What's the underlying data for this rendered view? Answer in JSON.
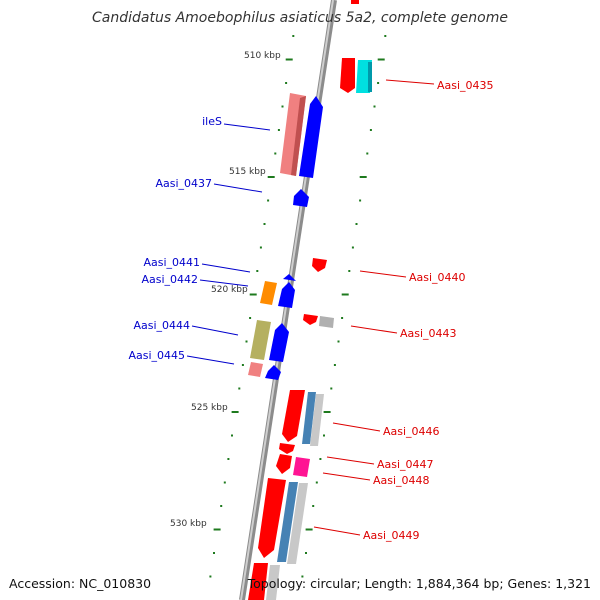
{
  "title": "Candidatus Amoebophilus asiaticus 5a2, complete genome",
  "footer": {
    "accession": "Accession: NC_010830",
    "topology": "Topology: circular; Length: 1,884,364 bp; Genes: 1,321"
  },
  "colors": {
    "backbone": "#8c8c8c",
    "tick": "#1e7a1e",
    "plus_label": "#0000cc",
    "minus_label": "#dd0000",
    "red": "#ff0000",
    "blue": "#0000ff",
    "cyan": "#00e0e0",
    "pink": "#f08080",
    "orange": "#ff8c00",
    "olive": "#b5b060",
    "magenta": "#ff1493",
    "gray": "#b0b0b0",
    "steelblue": "#4682b4"
  },
  "kbp_labels": [
    "510 kbp",
    "515 kbp",
    "520 kbp",
    "525 kbp",
    "530 kbp"
  ],
  "gene_labels": [
    {
      "text": "Aasi_0435",
      "strand": "minus"
    },
    {
      "text": "ileS",
      "strand": "plus"
    },
    {
      "text": "Aasi_0437",
      "strand": "plus"
    },
    {
      "text": "Aasi_0441",
      "strand": "plus"
    },
    {
      "text": "Aasi_0442",
      "strand": "plus"
    },
    {
      "text": "Aasi_0440",
      "strand": "minus"
    },
    {
      "text": "Aasi_0443",
      "strand": "minus"
    },
    {
      "text": "Aasi_0444",
      "strand": "plus"
    },
    {
      "text": "Aasi_0445",
      "strand": "plus"
    },
    {
      "text": "Aasi_0446",
      "strand": "minus"
    },
    {
      "text": "Aasi_0447",
      "strand": "minus"
    },
    {
      "text": "Aasi_0448",
      "strand": "minus"
    },
    {
      "text": "Aasi_0449",
      "strand": "minus"
    }
  ]
}
